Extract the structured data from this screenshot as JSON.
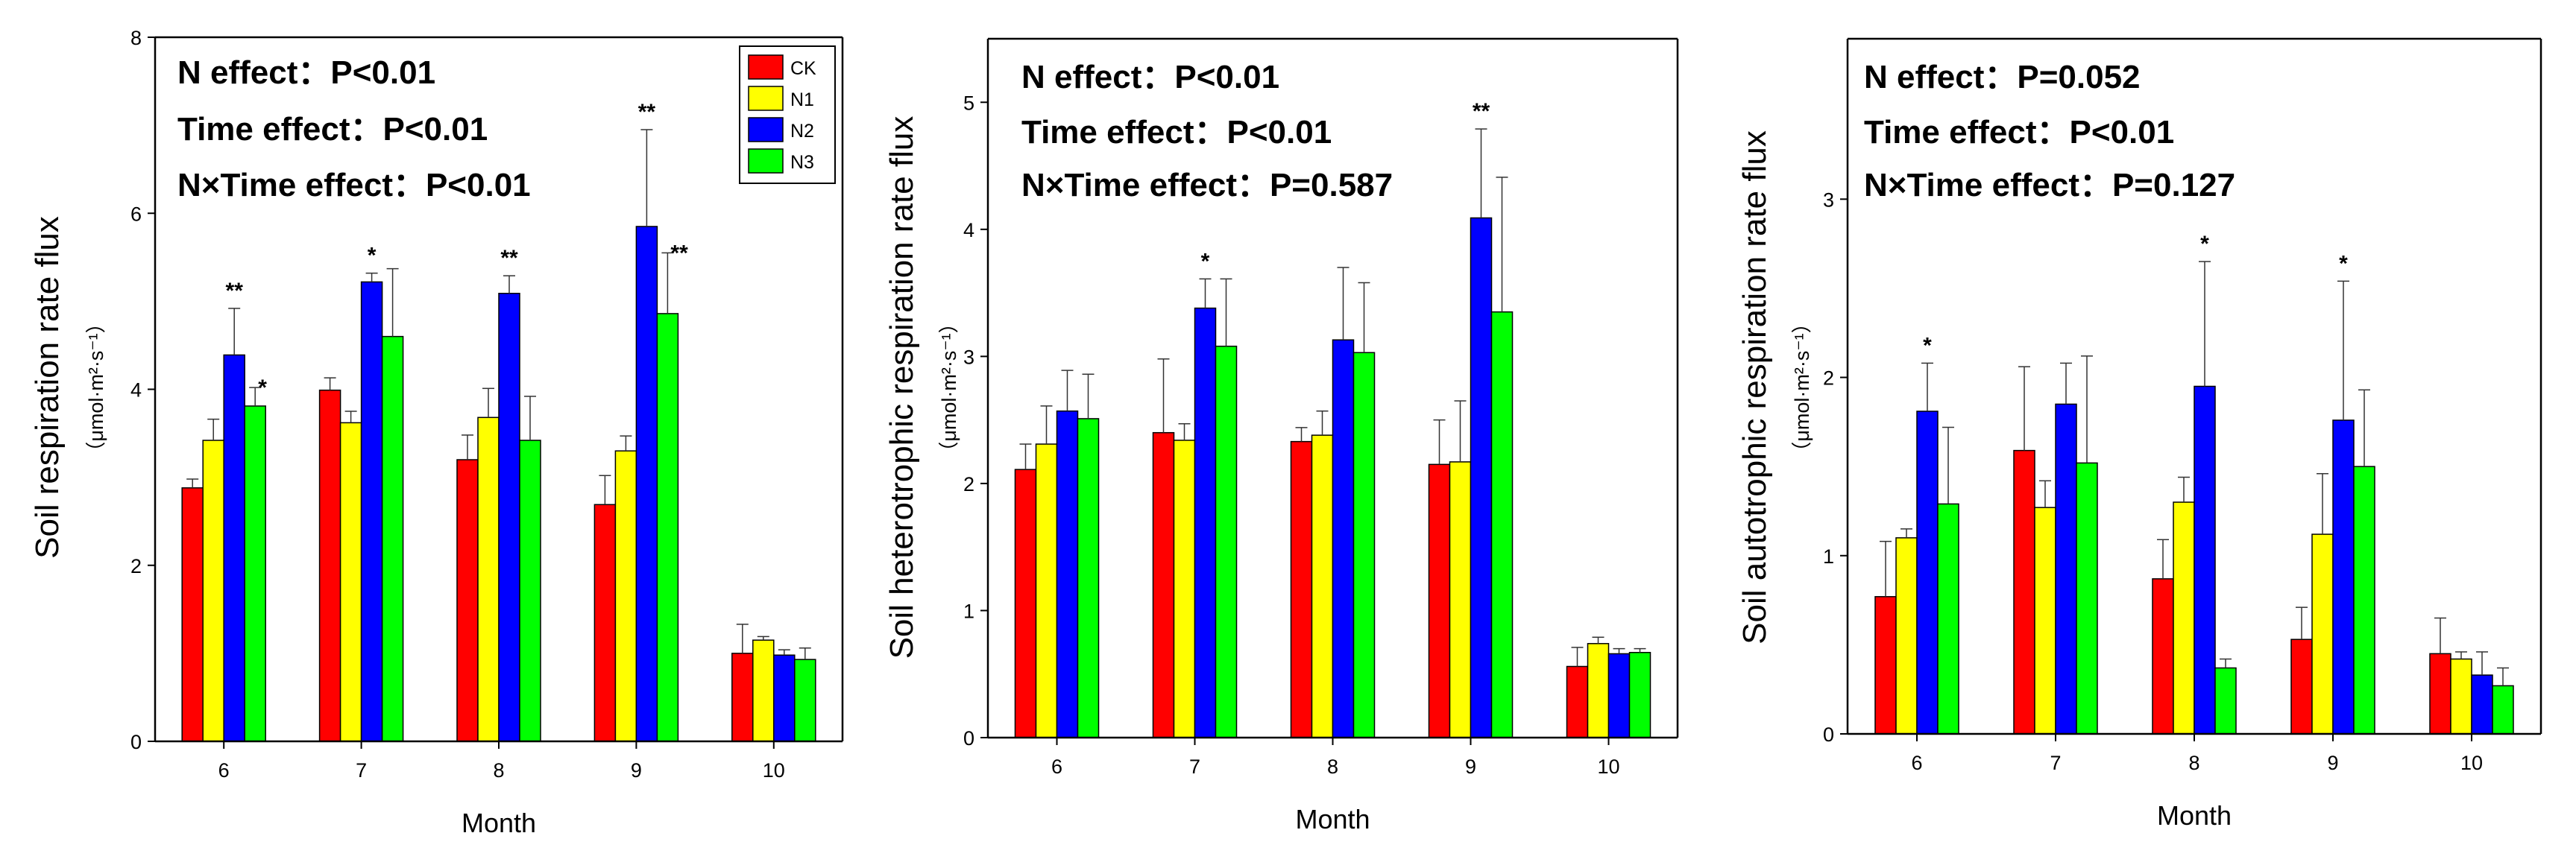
{
  "colors": {
    "CK": "#ff0000",
    "N1": "#ffff00",
    "N2": "#0000ff",
    "N3": "#00ff00"
  },
  "legend": {
    "labels": [
      "CK",
      "N1",
      "N2",
      "N3"
    ]
  },
  "chart_data": [
    {
      "type": "bar",
      "categories": [
        "6",
        "7",
        "8",
        "9",
        "10"
      ],
      "series": [
        {
          "name": "CK",
          "values": [
            2.88,
            3.99,
            3.2,
            2.69,
            1.0
          ],
          "errors": [
            0.1,
            0.14,
            0.28,
            0.33,
            0.33
          ]
        },
        {
          "name": "N1",
          "values": [
            3.42,
            3.62,
            3.68,
            3.3,
            1.15
          ],
          "errors": [
            0.24,
            0.13,
            0.33,
            0.17,
            0.04
          ]
        },
        {
          "name": "N2",
          "values": [
            4.39,
            5.22,
            5.09,
            5.85,
            0.98
          ],
          "errors": [
            0.53,
            0.1,
            0.2,
            1.1,
            0.06
          ]
        },
        {
          "name": "N3",
          "values": [
            3.81,
            4.6,
            3.42,
            4.86,
            0.93
          ],
          "errors": [
            0.21,
            0.77,
            0.5,
            0.69,
            0.13
          ]
        }
      ],
      "significance": [
        {
          "category": "6",
          "series": "N2",
          "label": "**"
        },
        {
          "category": "6",
          "series": "N3",
          "label": "*"
        },
        {
          "category": "7",
          "series": "N2",
          "label": "*"
        },
        {
          "category": "8",
          "series": "N2",
          "label": "**"
        },
        {
          "category": "9",
          "series": "N2",
          "label": "**"
        },
        {
          "category": "9",
          "series": "N3",
          "label": "**"
        }
      ],
      "xlabel": "Month",
      "ylabel": "Soil respiration rate flux",
      "ylabel_units": "（μmol·m²·s⁻¹）",
      "ylim": [
        0,
        8
      ],
      "yticks": [
        0,
        2,
        4,
        6,
        8
      ],
      "annotations": [
        "N effect：P<0.01",
        "Time effect：P<0.01",
        "N×Time effect：P<0.01"
      ],
      "legend_position": "top-right"
    },
    {
      "type": "bar",
      "categories": [
        "6",
        "7",
        "8",
        "9",
        "10"
      ],
      "series": [
        {
          "name": "CK",
          "values": [
            2.11,
            2.4,
            2.33,
            2.15,
            0.56
          ],
          "errors": [
            0.2,
            0.58,
            0.11,
            0.35,
            0.15
          ]
        },
        {
          "name": "N1",
          "values": [
            2.31,
            2.34,
            2.38,
            2.17,
            0.74
          ],
          "errors": [
            0.3,
            0.13,
            0.19,
            0.48,
            0.05
          ]
        },
        {
          "name": "N2",
          "values": [
            2.57,
            3.38,
            3.13,
            4.09,
            0.66
          ],
          "errors": [
            0.32,
            0.23,
            0.57,
            0.7,
            0.04
          ]
        },
        {
          "name": "N3",
          "values": [
            2.51,
            3.08,
            3.03,
            3.35,
            0.67
          ],
          "errors": [
            0.35,
            0.53,
            0.55,
            1.06,
            0.03
          ]
        }
      ],
      "significance": [
        {
          "category": "7",
          "series": "N2",
          "label": "*"
        },
        {
          "category": "9",
          "series": "N2",
          "label": "**"
        }
      ],
      "xlabel": "Month",
      "ylabel": "Soil heterotrophic respiration rate flux",
      "ylabel_units": "（μmol·m²·s⁻¹）",
      "ylim": [
        0,
        5.5
      ],
      "yticks": [
        0,
        1,
        2,
        3,
        4,
        5
      ],
      "annotations": [
        "N effect：P<0.01",
        "Time effect：P<0.01",
        "N×Time effect：P=0.587"
      ],
      "legend_position": "none"
    },
    {
      "type": "bar",
      "categories": [
        "6",
        "7",
        "8",
        "9",
        "10"
      ],
      "series": [
        {
          "name": "CK",
          "values": [
            0.77,
            1.59,
            0.87,
            0.53,
            0.45
          ],
          "errors": [
            0.31,
            0.47,
            0.22,
            0.18,
            0.2
          ]
        },
        {
          "name": "N1",
          "values": [
            1.1,
            1.27,
            1.3,
            1.12,
            0.42
          ],
          "errors": [
            0.05,
            0.15,
            0.14,
            0.34,
            0.04
          ]
        },
        {
          "name": "N2",
          "values": [
            1.81,
            1.85,
            1.95,
            1.76,
            0.33
          ],
          "errors": [
            0.27,
            0.23,
            0.7,
            0.78,
            0.13
          ]
        },
        {
          "name": "N3",
          "values": [
            1.29,
            1.52,
            0.37,
            1.5,
            0.27
          ],
          "errors": [
            0.43,
            0.6,
            0.05,
            0.43,
            0.1
          ]
        }
      ],
      "significance": [
        {
          "category": "6",
          "series": "N2",
          "label": "*"
        },
        {
          "category": "8",
          "series": "N2",
          "label": "*"
        },
        {
          "category": "9",
          "series": "N2",
          "label": "*"
        }
      ],
      "xlabel": "Month",
      "ylabel": "Soil autotrophic respiration rate flux",
      "ylabel_units": "（μmol·m²·s⁻¹）",
      "ylim": [
        0,
        3.9
      ],
      "yticks": [
        0,
        1,
        2,
        3
      ],
      "annotations": [
        "N effect：P=0.052",
        "Time effect：P<0.01",
        "N×Time effect：P=0.127"
      ],
      "legend_position": "none"
    }
  ]
}
